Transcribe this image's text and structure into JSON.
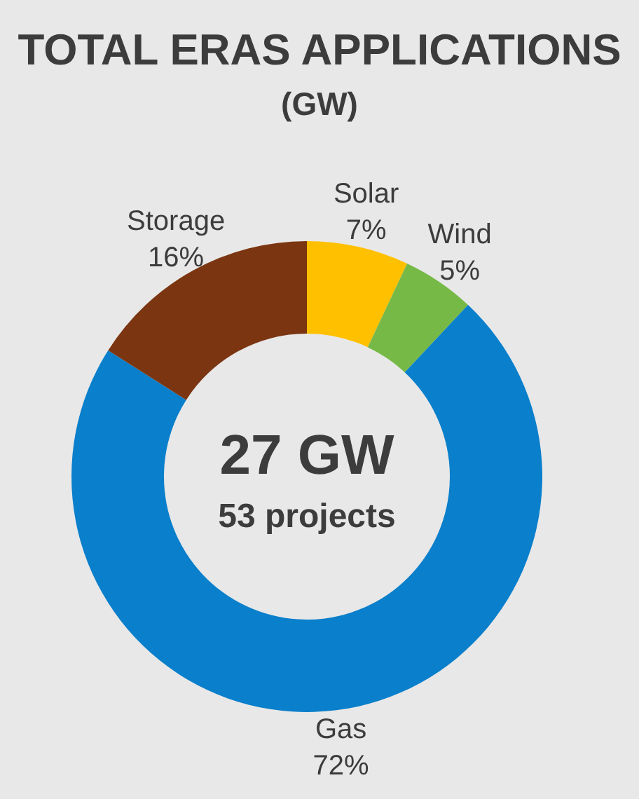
{
  "chart_data": {
    "type": "donut",
    "title": "TOTAL ERAS APPLICATIONS",
    "subtitle": "(GW)",
    "categories": [
      "Solar",
      "Wind",
      "Gas",
      "Storage"
    ],
    "values": [
      7,
      5,
      72,
      16
    ],
    "colors": [
      "#ffc000",
      "#76b947",
      "#0a7fcb",
      "#7b3511"
    ],
    "value_labels": [
      "7%",
      "5%",
      "72%",
      "16%"
    ],
    "annotations": [
      "27 GW",
      "53 projects"
    ]
  }
}
